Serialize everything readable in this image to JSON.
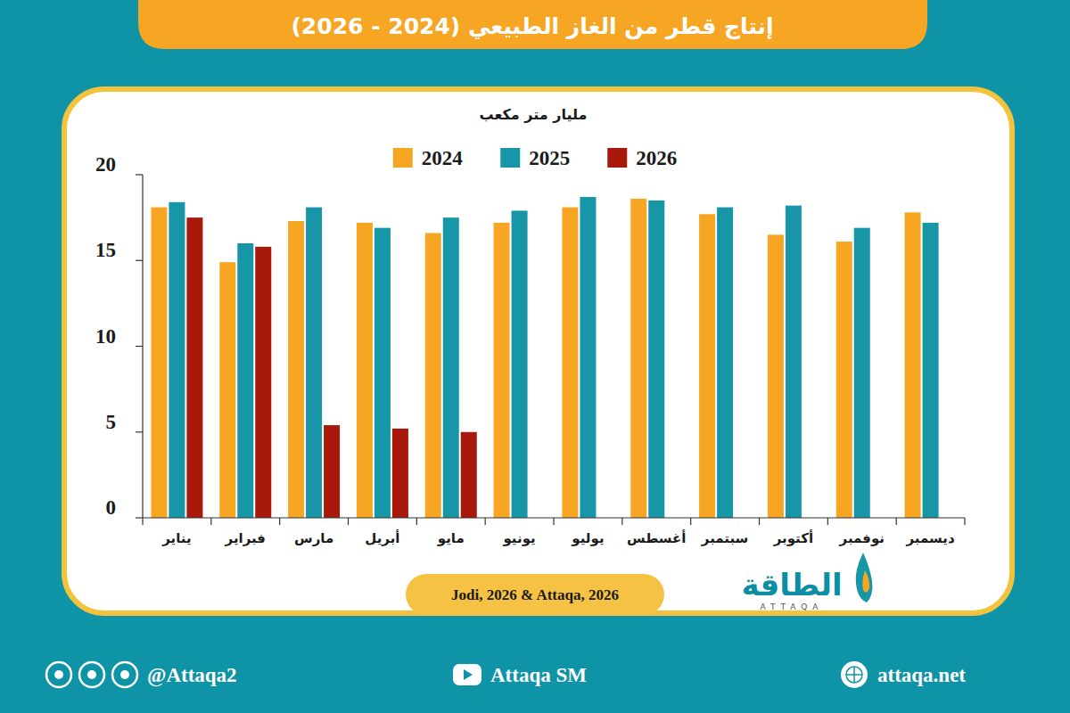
{
  "chart_data": {
    "type": "bar",
    "title": "إنتاج قطر من الغاز الطبيعي (2024 - 2026)",
    "y_label": "مليار متر مكعب",
    "source": "Jodi, 2026 & Attaqa, 2026",
    "categories": [
      "يناير",
      "فبراير",
      "مارس",
      "أبريل",
      "مايو",
      "يونيو",
      "يوليو",
      "أغسطس",
      "سبتمبر",
      "أكتوبر",
      "نوفمبر",
      "ديسمبر"
    ],
    "series": [
      {
        "name": "2024",
        "color": "#f6a623",
        "values": [
          18.1,
          14.9,
          17.3,
          17.2,
          16.6,
          17.2,
          18.1,
          18.6,
          17.7,
          16.5,
          16.1,
          17.8
        ]
      },
      {
        "name": "2025",
        "color": "#1796a8",
        "values": [
          18.4,
          16.0,
          18.1,
          16.9,
          17.5,
          17.9,
          18.7,
          18.5,
          18.1,
          18.2,
          16.9,
          17.2
        ]
      },
      {
        "name": "2026",
        "color": "#a8190c",
        "values": [
          17.5,
          15.8,
          5.4,
          5.2,
          5.0,
          null,
          null,
          null,
          null,
          null,
          null,
          null
        ]
      }
    ],
    "ylim": [
      0,
      20
    ],
    "yticks": [
      0,
      5,
      10,
      15,
      20
    ],
    "grid": false,
    "legend": "top"
  },
  "branding": {
    "logo": "الطاقة",
    "logo_sub": "ATTAQA",
    "social": "@Attaqa2",
    "youtube": "Attaqa SM",
    "website": "attaqa.net"
  }
}
